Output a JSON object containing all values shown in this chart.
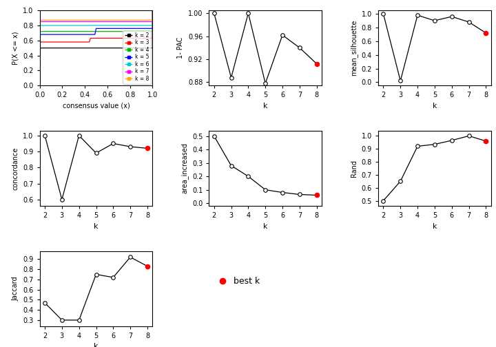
{
  "k_values": [
    2,
    3,
    4,
    5,
    6,
    7,
    8
  ],
  "best_k": 8,
  "pac_1minus": [
    1.0,
    0.888,
    1.0,
    0.878,
    0.962,
    0.94,
    0.912
  ],
  "mean_silhouette": [
    1.0,
    0.02,
    0.98,
    0.9,
    0.96,
    0.88,
    0.72
  ],
  "concordance": [
    1.0,
    0.6,
    1.0,
    0.89,
    0.95,
    0.93,
    0.92
  ],
  "area_increased": [
    0.5,
    0.28,
    0.2,
    0.1,
    0.08,
    0.065,
    0.06
  ],
  "rand": [
    0.5,
    0.65,
    0.92,
    0.935,
    0.965,
    1.0,
    0.96
  ],
  "jaccard": [
    0.47,
    0.3,
    0.3,
    0.75,
    0.72,
    0.92,
    0.83
  ],
  "ecdf_colors": [
    "#000000",
    "#FF0000",
    "#00BB00",
    "#0000FF",
    "#00CCCC",
    "#FF00FF",
    "#FFAA00"
  ],
  "ecdf_labels": [
    "k = 2",
    "k = 3",
    "k = 4",
    "k = 5",
    "k = 6",
    "k = 7",
    "k = 8"
  ],
  "background_color": "#FFFFFF",
  "subplot_bg": "#FFFFFF"
}
